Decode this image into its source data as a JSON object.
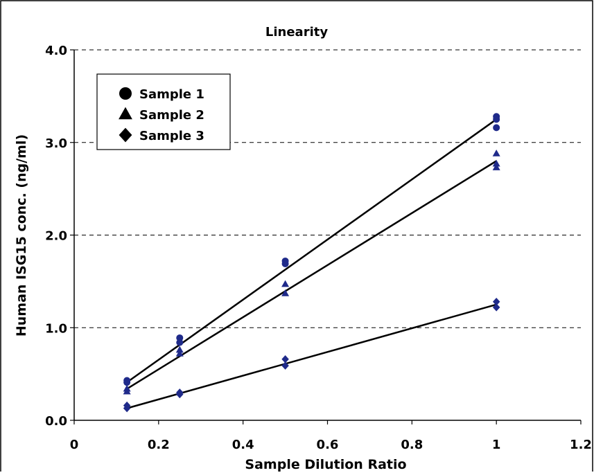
{
  "chart_data": {
    "type": "scatter",
    "title": "Linearity",
    "xlabel": "Sample Dilution Ratio",
    "ylabel": "Human ISG15 conc. (ng/ml)",
    "xlim": [
      0,
      1.2
    ],
    "ylim": [
      0,
      4.0
    ],
    "x_ticks": [
      "0",
      "0.2",
      "0.4",
      "0.6",
      "0.8",
      "1",
      "1.2"
    ],
    "y_ticks": [
      "0.0",
      "1.0",
      "2.0",
      "3.0",
      "4.0"
    ],
    "grid": "horizontal dashed",
    "legend_position": "top-left",
    "marker_color": "#1f2a8a",
    "line_color": "#000000",
    "series": [
      {
        "name": "Sample 1",
        "marker": "circle",
        "points": [
          [
            0.125,
            0.41
          ],
          [
            0.125,
            0.43
          ],
          [
            0.25,
            0.84
          ],
          [
            0.25,
            0.89
          ],
          [
            0.5,
            1.69
          ],
          [
            0.5,
            1.72
          ],
          [
            1,
            3.16
          ],
          [
            1,
            3.25
          ],
          [
            1,
            3.28
          ]
        ],
        "fit": [
          [
            0.125,
            0.41
          ],
          [
            1,
            3.25
          ]
        ]
      },
      {
        "name": "Sample 2",
        "marker": "triangle",
        "points": [
          [
            0.125,
            0.31
          ],
          [
            0.125,
            0.34
          ],
          [
            0.25,
            0.72
          ],
          [
            0.25,
            0.76
          ],
          [
            0.5,
            1.37
          ],
          [
            0.5,
            1.47
          ],
          [
            1,
            2.73
          ],
          [
            1,
            2.77
          ],
          [
            1,
            2.88
          ]
        ],
        "fit": [
          [
            0.125,
            0.34
          ],
          [
            1,
            2.8
          ]
        ]
      },
      {
        "name": "Sample 3",
        "marker": "diamond",
        "points": [
          [
            0.125,
            0.13
          ],
          [
            0.125,
            0.16
          ],
          [
            0.25,
            0.28
          ],
          [
            0.25,
            0.3
          ],
          [
            0.5,
            0.59
          ],
          [
            0.5,
            0.66
          ],
          [
            1,
            1.22
          ],
          [
            1,
            1.28
          ]
        ],
        "fit": [
          [
            0.125,
            0.13
          ],
          [
            1,
            1.25
          ]
        ]
      }
    ]
  }
}
